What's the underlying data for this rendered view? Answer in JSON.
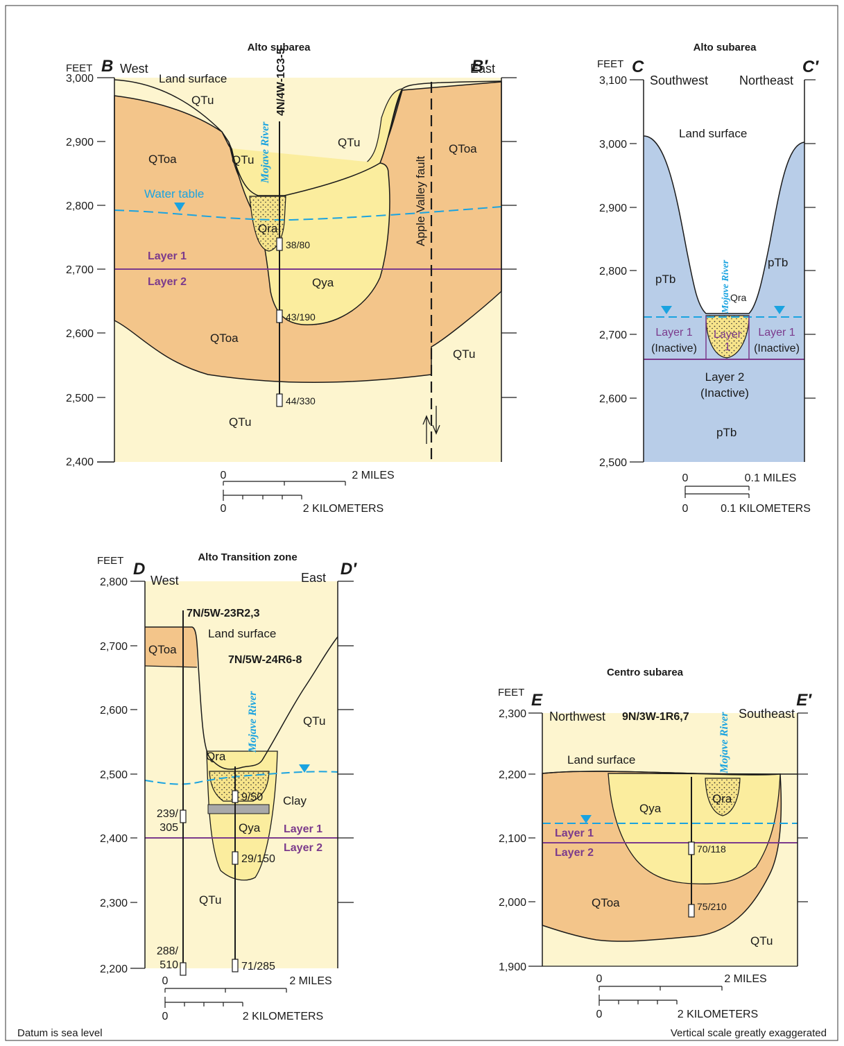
{
  "colors": {
    "qtu": "#fdf5cf",
    "qtoa": "#f3c58a",
    "qya": "#fbed9e",
    "qra": "#f7e48a",
    "ptb": "#b8cde8",
    "water": "#1aa3e0",
    "layer": "#7b3a8c"
  },
  "sectionB": {
    "title": "Alto subarea",
    "unit": "FEET",
    "left_letter": "B",
    "right_letter": "B′",
    "left_dir": "West",
    "right_dir": "East",
    "y_ticks": [
      "3,000",
      "2,900",
      "2,800",
      "2,700",
      "2,600",
      "2,500",
      "2,400"
    ],
    "labels": {
      "land_surface": "Land surface",
      "qtu_top": "QTu",
      "qtu_mid": "QTu",
      "qtu_right": "QTu",
      "qtoa_left": "QToa",
      "qtoa_right": "QToa",
      "qtoa_bottom": "QToa",
      "qtu_bottom": "QTu",
      "qtu_east": "QTu",
      "qra": "Qra",
      "qya": "Qya",
      "water_table": "Water table",
      "fault": "Apple Valley fault",
      "layer1": "Layer 1",
      "layer2": "Layer 2",
      "river": "Mojave River"
    },
    "well": {
      "name": "4N/4W-1C3-5",
      "screens": [
        "38/80",
        "43/190",
        "44/330"
      ]
    },
    "scale": {
      "miles_0": "0",
      "miles": "2 MILES",
      "km_0": "0",
      "km": "2 KILOMETERS"
    }
  },
  "sectionC": {
    "title": "Alto subarea",
    "unit": "FEET",
    "left_letter": "C",
    "right_letter": "C′",
    "left_dir": "Southwest",
    "right_dir": "Northeast",
    "y_ticks": [
      "3,100",
      "3,000",
      "2,900",
      "2,800",
      "2,700",
      "2,600",
      "2,500"
    ],
    "labels": {
      "land_surface": "Land surface",
      "ptb_left": "pTb",
      "ptb_right": "pTb",
      "ptb_bottom": "pTb",
      "qra": "Qra",
      "river": "Mojave River",
      "layer1_left": "Layer 1",
      "inactive_left": "(Inactive)",
      "layer1_right": "Layer 1",
      "inactive_right": "(Inactive)",
      "layer1_center_a": "Layer",
      "layer1_center_b": "1",
      "layer2": "Layer 2",
      "layer2_inactive": "(Inactive)"
    },
    "scale": {
      "miles_0": "0",
      "miles": "0.1 MILES",
      "km_0": "0",
      "km": "0.1 KILOMETERS"
    }
  },
  "sectionD": {
    "title": "Alto Transition zone",
    "unit": "FEET",
    "left_letter": "D",
    "right_letter": "D′",
    "left_dir": "West",
    "right_dir": "East",
    "y_ticks": [
      "2,800",
      "2,700",
      "2,600",
      "2,500",
      "2,400",
      "2,300",
      "2,200"
    ],
    "labels": {
      "land_surface": "Land surface",
      "qtoa": "QToa",
      "qtu_right": "QTu",
      "qtu_bottom": "QTu",
      "qra": "Qra",
      "qya": "Qya",
      "clay": "Clay",
      "layer1": "Layer 1",
      "layer2": "Layer 2",
      "river": "Mojave River"
    },
    "well1": {
      "name": "7N/5W-23R2,3",
      "screens_a": [
        "239/",
        "305"
      ],
      "screens_b": [
        "288/",
        "510"
      ]
    },
    "well2": {
      "name": "7N/5W-24R6-8",
      "screens": [
        "9/50",
        "29/150",
        "71/285"
      ]
    },
    "scale": {
      "miles_0": "0",
      "miles": "2 MILES",
      "km_0": "0",
      "km": "2 KILOMETERS"
    }
  },
  "sectionE": {
    "title": "Centro subarea",
    "unit": "FEET",
    "left_letter": "E",
    "right_letter": "E′",
    "left_dir": "Northwest",
    "right_dir": "Southeast",
    "y_ticks": [
      "2,300",
      "2,200",
      "2,100",
      "2,000",
      "1,900"
    ],
    "labels": {
      "land_surface": "Land surface",
      "qya": "Qya",
      "qra": "Qra",
      "qtoa": "QToa",
      "qtu": "QTu",
      "layer1": "Layer 1",
      "layer2": "Layer 2",
      "river": "Mojave River"
    },
    "well": {
      "name": "9N/3W-1R6,7",
      "screens": [
        "70/118",
        "75/210"
      ]
    },
    "scale": {
      "miles_0": "0",
      "miles": "2 MILES",
      "km_0": "0",
      "km": "2 KILOMETERS"
    }
  },
  "notes": {
    "datum": "Datum is sea level",
    "vertical": "Vertical scale greatly exaggerated"
  }
}
